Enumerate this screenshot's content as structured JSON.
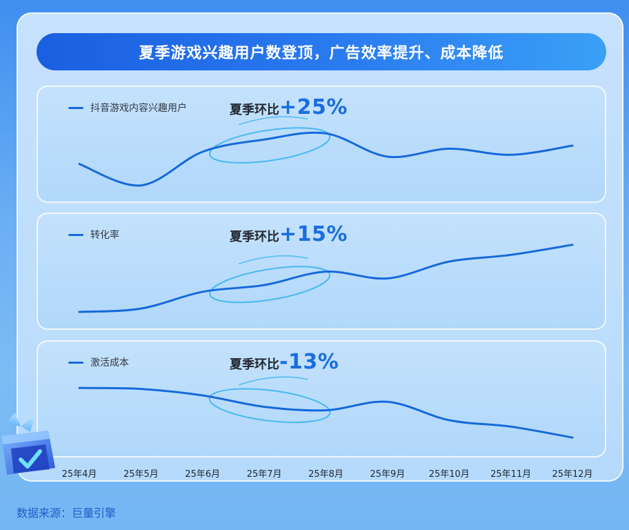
{
  "headline": "夏季游戏兴趣用户数登顶，广告效率提升、成本降低",
  "source": "数据来源：巨量引擎",
  "colors": {
    "line": "#1569db",
    "accent": "#1b6ee0",
    "ellipse": "#3bb4f2"
  },
  "chart_data": [
    {
      "type": "line",
      "legend": "抖音游戏内容兴趣用户",
      "qoq_label": "夏季环比",
      "qoq_value": "+25%",
      "x": [
        "25年4月",
        "25年5月",
        "25年6月",
        "25年7月",
        "25年8月",
        "25年9月",
        "25年10月",
        "25年11月",
        "25年12月"
      ],
      "values": [
        50,
        15,
        70,
        90,
        100,
        62,
        75,
        65,
        80
      ],
      "ylim": [
        0,
        115
      ]
    },
    {
      "type": "line",
      "legend": "转化率",
      "qoq_label": "夏季环比",
      "qoq_value": "+15%",
      "x": [
        "25年4月",
        "25年5月",
        "25年6月",
        "25年7月",
        "25年8月",
        "25年9月",
        "25年10月",
        "25年11月",
        "25年12月"
      ],
      "values": [
        0,
        5,
        30,
        40,
        60,
        50,
        75,
        85,
        100
      ],
      "ylim": [
        0,
        110
      ]
    },
    {
      "type": "line",
      "legend": "激活成本",
      "qoq_label": "夏季环比",
      "qoq_value": "-13%",
      "x": [
        "25年4月",
        "25年5月",
        "25年6月",
        "25年7月",
        "25年8月",
        "25年9月",
        "25年10月",
        "25年11月",
        "25年12月"
      ],
      "values": [
        100,
        98,
        85,
        62,
        55,
        72,
        35,
        22,
        0
      ],
      "ylim": [
        0,
        110
      ]
    }
  ]
}
